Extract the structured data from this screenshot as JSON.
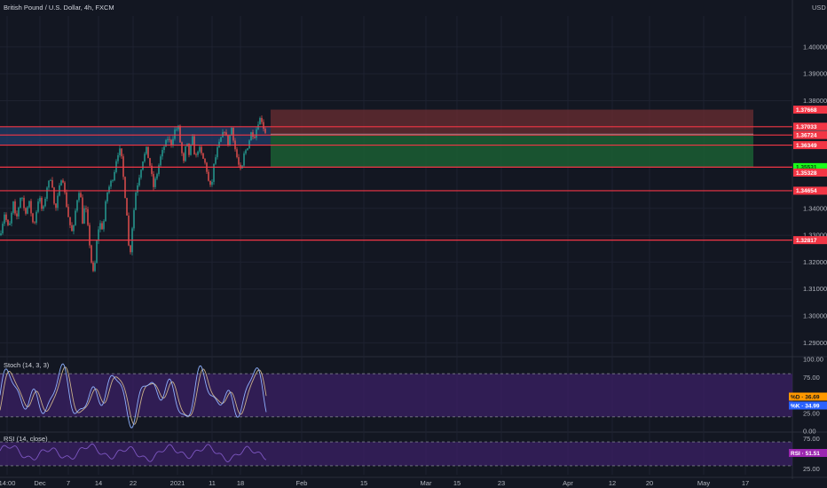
{
  "header": {
    "title": "British Pound / U.S. Dollar, 4h, FXCM",
    "currency": "USD"
  },
  "colors": {
    "background": "#131722",
    "grid": "#1e2230",
    "up": "#26a69a",
    "down": "#ef5350",
    "level": "#f23645",
    "stop_zone": "#6b2d31",
    "target_zone": "#1b5e33",
    "band": "#1f3a63",
    "stoch_k": "#2962ff",
    "stoch_d": "#ff9800",
    "osc_fill": "#3b2066",
    "rsi_line": "#7e57c2",
    "text": "#b2b5be"
  },
  "chart_data": [
    {
      "type": "candlestick",
      "title": "British Pound / U.S. Dollar, 4h, FXCM",
      "x_ticks": [
        "14:00",
        "Dec",
        "7",
        "14",
        "22",
        "2021",
        "11",
        "18",
        "Feb",
        "15",
        "Mar",
        "15",
        "23",
        "Apr",
        "12",
        "20",
        "May",
        "17"
      ],
      "y_ticks": [
        1.4,
        1.39,
        1.38,
        1.34,
        1.33,
        1.32,
        1.31,
        1.3,
        1.29
      ],
      "ylim": [
        1.2855,
        1.4115
      ],
      "path": [
        [
          0,
          1.33
        ],
        [
          5,
          1.338
        ],
        [
          10,
          1.332
        ],
        [
          15,
          1.342
        ],
        [
          18,
          1.335
        ],
        [
          24,
          1.346
        ],
        [
          28,
          1.338
        ],
        [
          33,
          1.342
        ],
        [
          38,
          1.333
        ],
        [
          44,
          1.345
        ],
        [
          48,
          1.338
        ],
        [
          53,
          1.348
        ],
        [
          58,
          1.352
        ],
        [
          62,
          1.338
        ],
        [
          66,
          1.346
        ],
        [
          70,
          1.353
        ],
        [
          74,
          1.343
        ],
        [
          78,
          1.335
        ],
        [
          82,
          1.33
        ],
        [
          86,
          1.342
        ],
        [
          90,
          1.348
        ],
        [
          93,
          1.335
        ],
        [
          96,
          1.342
        ],
        [
          100,
          1.33
        ],
        [
          103,
          1.32
        ],
        [
          106,
          1.314
        ],
        [
          108,
          1.325
        ],
        [
          112,
          1.335
        ],
        [
          116,
          1.332
        ],
        [
          120,
          1.345
        ],
        [
          124,
          1.349
        ],
        [
          128,
          1.352
        ],
        [
          132,
          1.36
        ],
        [
          136,
          1.362
        ],
        [
          140,
          1.348
        ],
        [
          143,
          1.338
        ],
        [
          146,
          1.32
        ],
        [
          149,
          1.333
        ],
        [
          153,
          1.346
        ],
        [
          157,
          1.352
        ],
        [
          161,
          1.358
        ],
        [
          165,
          1.362
        ],
        [
          169,
          1.356
        ],
        [
          173,
          1.348
        ],
        [
          177,
          1.353
        ],
        [
          181,
          1.359
        ],
        [
          185,
          1.363
        ],
        [
          189,
          1.366
        ],
        [
          193,
          1.364
        ],
        [
          197,
          1.369
        ],
        [
          201,
          1.37
        ],
        [
          204,
          1.362
        ],
        [
          207,
          1.357
        ],
        [
          210,
          1.365
        ],
        [
          213,
          1.36
        ],
        [
          217,
          1.366
        ],
        [
          220,
          1.358
        ],
        [
          224,
          1.363
        ],
        [
          228,
          1.359
        ],
        [
          232,
          1.356
        ],
        [
          235,
          1.35
        ],
        [
          238,
          1.347
        ],
        [
          241,
          1.356
        ],
        [
          245,
          1.362
        ],
        [
          249,
          1.366
        ],
        [
          253,
          1.369
        ],
        [
          257,
          1.364
        ],
        [
          261,
          1.37
        ],
        [
          265,
          1.362
        ],
        [
          269,
          1.356
        ],
        [
          272,
          1.353
        ],
        [
          275,
          1.36
        ],
        [
          279,
          1.363
        ],
        [
          283,
          1.368
        ],
        [
          287,
          1.367
        ],
        [
          291,
          1.372
        ],
        [
          294,
          1.374
        ],
        [
          297,
          1.37
        ],
        [
          300,
          1.3675
        ]
      ],
      "levels": [
        1.37033,
        1.36724,
        1.36349,
        1.35531,
        1.34654,
        1.32817
      ],
      "price_tags": [
        {
          "text": "1.37668",
          "value": 1.37668,
          "bg": "#f23645",
          "fg": "#ffffff"
        },
        {
          "text": "1.37033",
          "value": 1.37033,
          "bg": "#f23645",
          "fg": "#ffffff"
        },
        {
          "text": "1.36754",
          "value": 1.36754,
          "bg": "#4a4d59",
          "fg": "#ffffff"
        },
        {
          "text": "1.36724",
          "value": 1.36724,
          "bg": "#f23645",
          "fg": "#ffffff"
        },
        {
          "text": "1.36349",
          "value": 1.36349,
          "bg": "#f23645",
          "fg": "#ffffff"
        },
        {
          "text": "1.35531",
          "value": 1.35531,
          "bg": "#1aff1a",
          "fg": "#0b3d0b"
        },
        {
          "text": "1.35328",
          "value": 1.35328,
          "bg": "#f23645",
          "fg": "#ffffff"
        },
        {
          "text": "1.34654",
          "value": 1.34654,
          "bg": "#f23645",
          "fg": "#ffffff"
        },
        {
          "text": "1.32817",
          "value": 1.32817,
          "bg": "#f23645",
          "fg": "#ffffff"
        }
      ],
      "position": {
        "entry": 1.36754,
        "stop": 1.37668,
        "target": 1.35531,
        "start_index": 305,
        "end_index": 849
      },
      "band": [
        1.37033,
        1.36349
      ],
      "grid": true
    },
    {
      "type": "line",
      "title": "Stoch (14, 3, 3)",
      "y_ticks": [
        100.0,
        75.0,
        25.0,
        0.0
      ],
      "ylim": [
        0,
        100
      ],
      "band": [
        20,
        80
      ],
      "last_values": [
        {
          "label": "%D",
          "text": "36.69",
          "value": 36.69
        },
        {
          "label": "%K",
          "text": "34.99",
          "value": 34.99
        }
      ]
    },
    {
      "type": "line",
      "title": "RSI (14, close)",
      "y_ticks": [
        75.0,
        25.0
      ],
      "ylim": [
        15,
        85
      ],
      "band": [
        30,
        70
      ],
      "last_values": [
        {
          "label": "RSI",
          "text": "51.51",
          "value": 51.51
        }
      ]
    }
  ]
}
